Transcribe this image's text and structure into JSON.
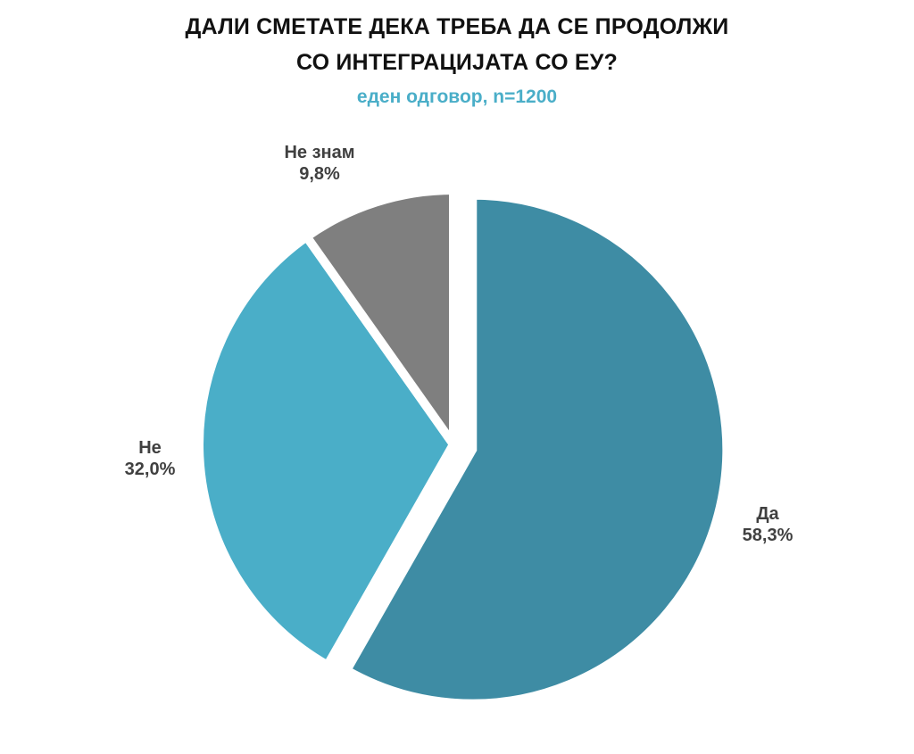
{
  "chart_data": {
    "type": "pie",
    "title_lines": [
      "ДАЛИ СМЕТАТЕ ДЕКА ТРЕБА ДА СЕ ПРОДОЛЖИ",
      "СО ИНТЕГРАЦИЈАТА СО ЕУ?"
    ],
    "subtitle": "еден одговор, n=1200",
    "slices": [
      {
        "label": "Да",
        "value": 58.3,
        "value_text": "58,3%",
        "color": "#3e8ca4",
        "exploded": true
      },
      {
        "label": "Не",
        "value": 32.0,
        "value_text": "32,0%",
        "color": "#4aaec8",
        "exploded": false
      },
      {
        "label": "Не знам",
        "value": 9.8,
        "value_text": "9,8%",
        "color": "#7f7f7f",
        "exploded": false
      }
    ],
    "start_angle": "12 o'clock",
    "direction": "clockwise",
    "legend": "none",
    "colors": {
      "title": "#111111",
      "subtitle": "#4aaec8",
      "labels": "#404040"
    }
  }
}
